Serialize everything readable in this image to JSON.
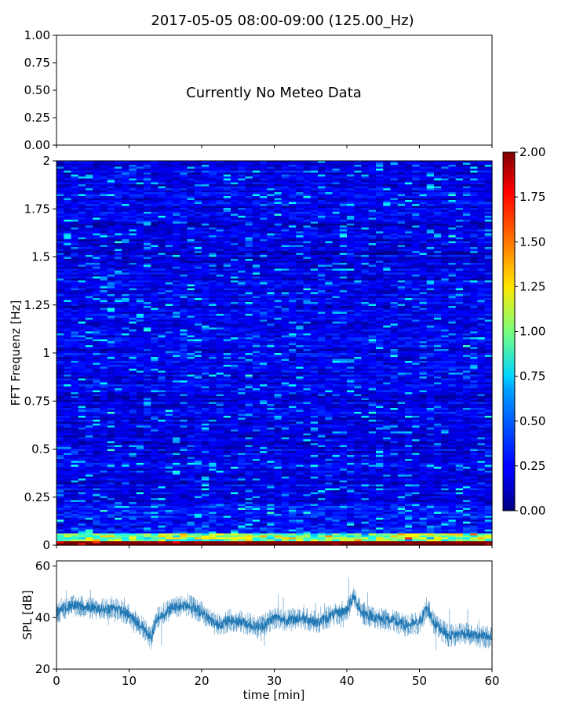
{
  "title": "2017-05-05 08:00-09:00 (125.00_Hz)",
  "chart_data": [
    {
      "type": "text",
      "message": "Currently No Meteo Data",
      "yticks": [
        "0.00",
        "0.25",
        "0.50",
        "0.75",
        "1.00"
      ],
      "ylim": [
        0,
        1
      ],
      "xlim": [
        0,
        60
      ]
    },
    {
      "type": "heatmap",
      "ylabel": "FFT Frequenz [Hz]",
      "xlim": [
        0,
        60
      ],
      "ylim": [
        0,
        2
      ],
      "yticks": [
        "0",
        "0.25",
        "0.5",
        "0.75",
        "1",
        "1.25",
        "1.5",
        "1.75",
        "2"
      ],
      "colormap": "jet",
      "colorbar": {
        "range": [
          0,
          2
        ],
        "ticks": [
          "0.00",
          "0.25",
          "0.50",
          "0.75",
          "1.00",
          "1.25",
          "1.50",
          "1.75",
          "2.00"
        ]
      },
      "description_values": {
        "background_level": 0.2,
        "low_freq_band_level": [
          0.8,
          2.0
        ]
      }
    },
    {
      "type": "line",
      "ylabel": "SPL [dB]",
      "xlabel": "time [min]",
      "xlim": [
        0,
        60
      ],
      "ylim": [
        20,
        62
      ],
      "xticks": [
        "0",
        "10",
        "20",
        "30",
        "40",
        "50",
        "60"
      ],
      "yticks": [
        "20",
        "40",
        "60"
      ],
      "color": "#1f77b4",
      "series": [
        {
          "x": [
            0,
            2,
            4,
            6,
            8,
            10,
            12,
            13,
            14,
            16,
            18,
            20,
            22,
            24,
            26,
            28,
            30,
            32,
            34,
            36,
            38,
            40,
            41,
            42,
            44,
            46,
            48,
            50,
            51,
            52,
            54,
            56,
            58,
            60
          ],
          "values": [
            42,
            45,
            44,
            43,
            44,
            41,
            36,
            32,
            40,
            44,
            45,
            42,
            37,
            39,
            38,
            36,
            40,
            39,
            40,
            38,
            41,
            43,
            48,
            42,
            40,
            39,
            37,
            38,
            44,
            38,
            33,
            34,
            33,
            32
          ]
        }
      ]
    }
  ]
}
